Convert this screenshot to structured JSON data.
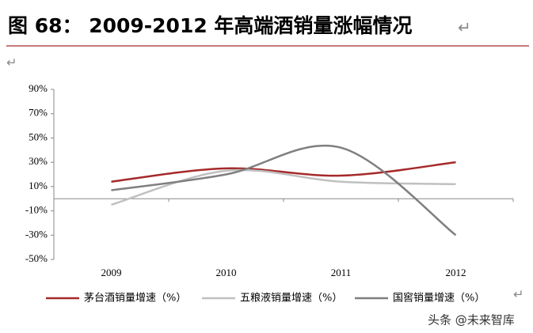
{
  "chart_data": {
    "type": "line",
    "title": "图 68： 2009-2012 年高端酒销量涨幅情况",
    "categories": [
      "2009",
      "2010",
      "2011",
      "2012"
    ],
    "series": [
      {
        "name": "茅台酒销量增速（%）",
        "color": "#a52a2a",
        "values": [
          14,
          25,
          19,
          30
        ]
      },
      {
        "name": "五粮液销量增速（%）",
        "color": "#c0c0c0",
        "values": [
          -5,
          23,
          14,
          12
        ]
      },
      {
        "name": "国窖销量增速（%）",
        "color": "#7f7f7f",
        "values": [
          7,
          20,
          42,
          -30
        ]
      }
    ],
    "ylim": [
      -50,
      90
    ],
    "yticks": [
      {
        "value": -50,
        "label": "-50%"
      },
      {
        "value": -30,
        "label": "-30%"
      },
      {
        "value": -10,
        "label": "-10%"
      },
      {
        "value": 10,
        "label": "10%"
      },
      {
        "value": 30,
        "label": "30%"
      },
      {
        "value": 50,
        "label": "50%"
      },
      {
        "value": 70,
        "label": "70%"
      },
      {
        "value": 90,
        "label": "90%"
      }
    ],
    "smooth": true,
    "legend": "bottom"
  },
  "paragraph_mark": "↵",
  "watermark": "头条 @未来智库"
}
